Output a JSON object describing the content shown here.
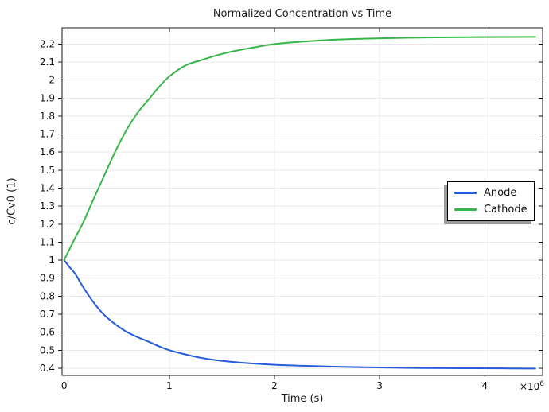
{
  "chart_data": {
    "type": "line",
    "title": "Normalized Concentration vs Time",
    "xlabel": "Time (s)",
    "ylabel": "c/Cv0 (1)",
    "x_unit_note": "x values expressed in units of 1e6 seconds",
    "x_multiplier_label": "×10",
    "x_multiplier_exp": "6",
    "xlim": [
      -0.02,
      4.55
    ],
    "ylim": [
      0.36,
      2.29
    ],
    "x_ticks": [
      "0",
      "1",
      "2",
      "3",
      "4"
    ],
    "y_ticks": [
      "0.4",
      "0.5",
      "0.6",
      "0.7",
      "0.8",
      "0.9",
      "1",
      "1.1",
      "1.2",
      "1.3",
      "1.4",
      "1.5",
      "1.6",
      "1.7",
      "1.8",
      "1.9",
      "2",
      "2.1",
      "2.2"
    ],
    "grid": true,
    "grid_color": "#e8e8e8",
    "frame_color": "#1a1a1a",
    "legend_position": "right-middle",
    "series": [
      {
        "name": "Anode",
        "color": "#265BDB",
        "x": [
          0,
          0.02,
          0.05,
          0.08,
          0.11,
          0.165,
          0.22,
          0.28,
          0.35,
          0.42,
          0.5,
          0.6,
          0.7,
          0.8,
          0.9,
          1.0,
          1.15,
          1.3,
          1.5,
          1.7,
          2.0,
          2.3,
          2.6,
          3.0,
          3.4,
          3.8,
          4.2,
          4.48
        ],
        "y": [
          1.0,
          0.985,
          0.962,
          0.942,
          0.92,
          0.865,
          0.815,
          0.765,
          0.715,
          0.675,
          0.638,
          0.6,
          0.572,
          0.548,
          0.522,
          0.5,
          0.477,
          0.458,
          0.441,
          0.43,
          0.419,
          0.413,
          0.408,
          0.404,
          0.401,
          0.4,
          0.399,
          0.398
        ]
      },
      {
        "name": "Cathode",
        "color": "#38B54A",
        "x": [
          0,
          0.02,
          0.05,
          0.08,
          0.11,
          0.165,
          0.22,
          0.28,
          0.35,
          0.42,
          0.5,
          0.6,
          0.7,
          0.8,
          0.9,
          1.0,
          1.15,
          1.3,
          1.5,
          1.7,
          2.0,
          2.3,
          2.6,
          3.0,
          3.4,
          3.8,
          4.2,
          4.48
        ],
        "y": [
          1.0,
          1.025,
          1.06,
          1.095,
          1.13,
          1.19,
          1.26,
          1.34,
          1.43,
          1.52,
          1.62,
          1.73,
          1.82,
          1.89,
          1.96,
          2.02,
          2.08,
          2.11,
          2.145,
          2.17,
          2.2,
          2.215,
          2.225,
          2.232,
          2.236,
          2.238,
          2.239,
          2.24
        ]
      }
    ]
  }
}
